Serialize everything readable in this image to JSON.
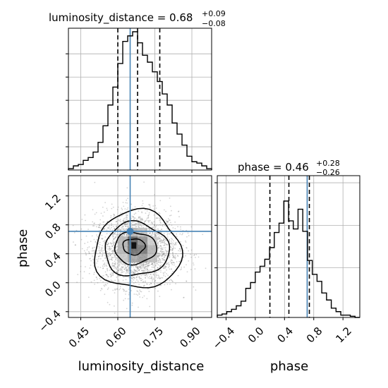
{
  "chart_data": {
    "type": "corner",
    "parameters": [
      "luminosity_distance",
      "phase"
    ],
    "truths": {
      "luminosity_distance": 0.65,
      "phase": 0.71
    },
    "colors": {
      "hist": "#000000",
      "truth": "#4682b4",
      "grid": "#b0b0b0",
      "quantile": "#000000",
      "scatter": "#808080"
    },
    "grid": true,
    "luminosity_distance_hist": {
      "title_prefix": "luminosity_distance = 0.68",
      "upper_error": "+0.09",
      "lower_error": "−0.08",
      "xlim": [
        0.4,
        0.98
      ],
      "quantiles": [
        0.6,
        0.68,
        0.77
      ],
      "bin_edges": [
        0.4,
        0.42,
        0.44,
        0.46,
        0.48,
        0.5,
        0.52,
        0.54,
        0.56,
        0.58,
        0.6,
        0.62,
        0.64,
        0.66,
        0.68,
        0.7,
        0.72,
        0.74,
        0.76,
        0.78,
        0.8,
        0.82,
        0.84,
        0.86,
        0.88,
        0.9,
        0.92,
        0.94,
        0.96,
        0.98
      ],
      "relative_counts": [
        0.01,
        0.03,
        0.04,
        0.07,
        0.09,
        0.13,
        0.2,
        0.32,
        0.47,
        0.6,
        0.77,
        0.93,
        0.97,
        1.0,
        0.92,
        0.83,
        0.78,
        0.71,
        0.64,
        0.55,
        0.47,
        0.34,
        0.26,
        0.18,
        0.1,
        0.06,
        0.05,
        0.03,
        0.01
      ]
    },
    "phase_hist": {
      "title_prefix": "phase = 0.46",
      "upper_error": "+0.28",
      "lower_error": "−0.26",
      "xlim": [
        -0.52,
        1.43
      ],
      "quantiles": [
        0.2,
        0.46,
        0.74
      ],
      "bin_edges": [
        -0.52,
        -0.455,
        -0.39,
        -0.325,
        -0.26,
        -0.195,
        -0.13,
        -0.065,
        0.0,
        0.065,
        0.13,
        0.195,
        0.26,
        0.325,
        0.39,
        0.455,
        0.52,
        0.585,
        0.65,
        0.715,
        0.78,
        0.845,
        0.91,
        0.975,
        1.04,
        1.105,
        1.17,
        1.235,
        1.3,
        1.365,
        1.43
      ],
      "relative_counts": [
        0.02,
        0.03,
        0.05,
        0.07,
        0.1,
        0.14,
        0.25,
        0.3,
        0.39,
        0.44,
        0.5,
        0.6,
        0.73,
        0.81,
        1.0,
        0.83,
        0.76,
        0.93,
        0.74,
        0.49,
        0.37,
        0.31,
        0.21,
        0.15,
        0.08,
        0.05,
        0.02,
        0.02,
        0.01,
        0.0
      ]
    },
    "joint": {
      "xlabel": "luminosity_distance",
      "ylabel": "phase",
      "xlim": [
        0.4,
        0.98
      ],
      "ylim": [
        -0.48,
        1.48
      ],
      "x_ticks": [
        "0.45",
        "0.60",
        "0.75",
        "0.90"
      ],
      "y_ticks": [
        "−0.4",
        "0.0",
        "0.4",
        "0.8",
        "1.2"
      ],
      "contour_levels": [
        {
          "cx": 0.68,
          "cy": 0.45,
          "rx": 0.175,
          "ry": 0.54
        },
        {
          "cx": 0.675,
          "cy": 0.46,
          "rx": 0.13,
          "ry": 0.37
        },
        {
          "cx": 0.67,
          "cy": 0.48,
          "rx": 0.085,
          "ry": 0.22
        },
        {
          "cx": 0.665,
          "cy": 0.5,
          "rx": 0.045,
          "ry": 0.11
        }
      ],
      "density_cells": [
        {
          "x0": 0.6,
          "x1": 0.64,
          "y0": 0.28,
          "y1": 0.4,
          "d": 0.22
        },
        {
          "x0": 0.64,
          "x1": 0.68,
          "y0": 0.28,
          "y1": 0.4,
          "d": 0.35
        },
        {
          "x0": 0.68,
          "x1": 0.72,
          "y0": 0.28,
          "y1": 0.4,
          "d": 0.4
        },
        {
          "x0": 0.72,
          "x1": 0.76,
          "y0": 0.28,
          "y1": 0.4,
          "d": 0.25
        },
        {
          "x0": 0.6,
          "x1": 0.64,
          "y0": 0.4,
          "y1": 0.52,
          "d": 0.3
        },
        {
          "x0": 0.64,
          "x1": 0.68,
          "y0": 0.4,
          "y1": 0.52,
          "d": 0.6
        },
        {
          "x0": 0.68,
          "x1": 0.72,
          "y0": 0.4,
          "y1": 0.52,
          "d": 0.55
        },
        {
          "x0": 0.72,
          "x1": 0.76,
          "y0": 0.4,
          "y1": 0.52,
          "d": 0.3
        },
        {
          "x0": 0.6,
          "x1": 0.64,
          "y0": 0.52,
          "y1": 0.64,
          "d": 0.3
        },
        {
          "x0": 0.64,
          "x1": 0.68,
          "y0": 0.52,
          "y1": 0.64,
          "d": 0.65
        },
        {
          "x0": 0.68,
          "x1": 0.72,
          "y0": 0.52,
          "y1": 0.64,
          "d": 0.45
        },
        {
          "x0": 0.72,
          "x1": 0.76,
          "y0": 0.52,
          "y1": 0.64,
          "d": 0.2
        },
        {
          "x0": 0.64,
          "x1": 0.68,
          "y0": 0.64,
          "y1": 0.76,
          "d": 0.3
        },
        {
          "x0": 0.68,
          "x1": 0.72,
          "y0": 0.64,
          "y1": 0.76,
          "d": 0.25
        },
        {
          "x0": 0.655,
          "x1": 0.675,
          "y0": 0.47,
          "y1": 0.56,
          "d": 1.0
        }
      ]
    },
    "phase_ticks": [
      "−0.4",
      "0.0",
      "0.4",
      "0.8",
      "1.2"
    ]
  }
}
